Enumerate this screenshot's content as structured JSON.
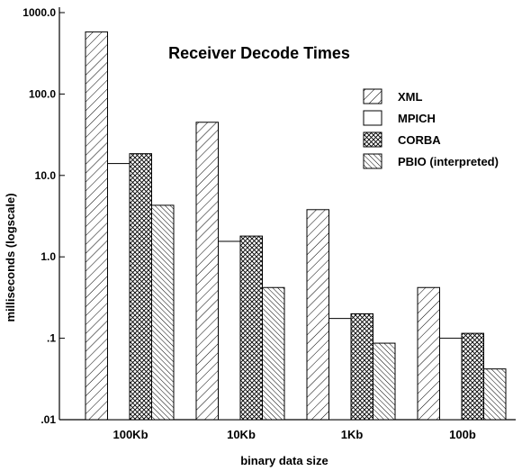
{
  "chart_data": {
    "type": "bar",
    "title": "Receiver Decode Times",
    "xlabel": "binary data size",
    "ylabel": "milliseconds (logscale)",
    "y_scale": "log",
    "ylim": [
      0.01,
      1000
    ],
    "y_ticks": [
      {
        "value": 1000,
        "label": "1000.0"
      },
      {
        "value": 100,
        "label": "100.0"
      },
      {
        "value": 10,
        "label": "10.0"
      },
      {
        "value": 1,
        "label": "1.0"
      },
      {
        "value": 0.1,
        "label": ".1"
      },
      {
        "value": 0.01,
        "label": ".01"
      }
    ],
    "categories": [
      "100Kb",
      "10Kb",
      "1Kb",
      "100b"
    ],
    "series": [
      {
        "name": "XML",
        "pattern": "diag-wide",
        "values": [
          580,
          45,
          3.8,
          0.42
        ]
      },
      {
        "name": "MPICH",
        "pattern": "solid-white",
        "values": [
          14,
          1.55,
          0.175,
          0.1
        ]
      },
      {
        "name": "CORBA",
        "pattern": "crosshatch",
        "values": [
          18.5,
          1.8,
          0.2,
          0.115
        ]
      },
      {
        "name": "PBIO (interpreted)",
        "pattern": "diag-dense",
        "values": [
          4.3,
          0.42,
          0.087,
          0.042
        ]
      }
    ],
    "legend_position": "top-right",
    "grid": false,
    "colors": {
      "stroke": "#000000",
      "fill": "#ffffff"
    }
  }
}
